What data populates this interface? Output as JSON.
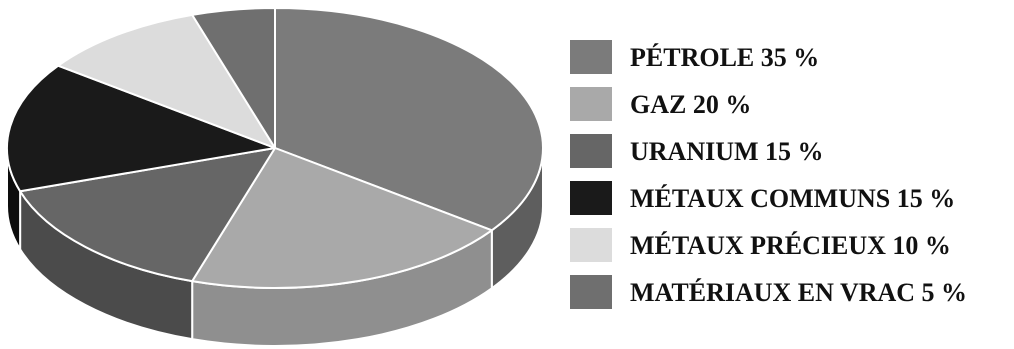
{
  "chart_data": {
    "type": "pie",
    "title": "",
    "style": "3d",
    "slices": [
      {
        "label": "PÉTROLE 35 %",
        "value": 35,
        "color": "#7b7b7b",
        "side_color": "#5e5e5e"
      },
      {
        "label": "GAZ 20 %",
        "value": 20,
        "color": "#a9a9a9",
        "side_color": "#8f8f8f"
      },
      {
        "label": "URANIUM 15 %",
        "value": 15,
        "color": "#666666",
        "side_color": "#4b4b4b"
      },
      {
        "label": "MÉTAUX COMMUNS 15 %",
        "value": 15,
        "color": "#1a1a1a",
        "side_color": "#0d0d0d"
      },
      {
        "label": "MÉTAUX PRÉCIEUX 10 %",
        "value": 10,
        "color": "#dcdcdc",
        "side_color": "#c4c4c4"
      },
      {
        "label": "MATÉRIAUX EN VRAC 5 %",
        "value": 5,
        "color": "#6f6f6f",
        "side_color": "#555555"
      }
    ],
    "legend_position": "right"
  }
}
